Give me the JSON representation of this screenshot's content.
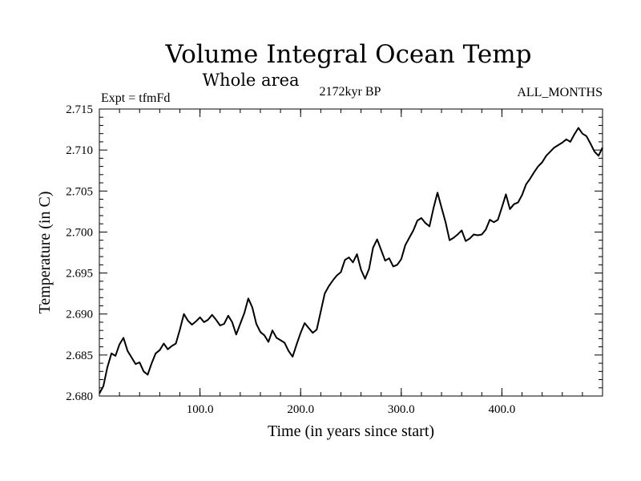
{
  "chart_data": {
    "type": "line",
    "title": "Volume Integral Ocean Temp",
    "subtitle": "Whole area",
    "experiment_label": "Expt = tfmFd",
    "period_label": "2172kyr BP",
    "months_label": "ALL_MONTHS",
    "xlabel": "Time (in years since start)",
    "ylabel": "Temperature (in C)",
    "xlim": [
      0,
      500
    ],
    "ylim": [
      2.68,
      2.715
    ],
    "xticks": [
      100,
      200,
      300,
      400
    ],
    "xtick_labels": [
      "100.0",
      "200.0",
      "300.0",
      "400.0"
    ],
    "yticks": [
      2.68,
      2.685,
      2.69,
      2.695,
      2.7,
      2.705,
      2.71,
      2.715
    ],
    "ytick_labels": [
      "2.680",
      "2.685",
      "2.690",
      "2.695",
      "2.700",
      "2.705",
      "2.710",
      "2.715"
    ],
    "grid": false,
    "series": [
      {
        "name": "Volume Integral Ocean Temp",
        "color": "#000000",
        "x": [
          0,
          4,
          8,
          12,
          16,
          20,
          24,
          28,
          32,
          36,
          40,
          44,
          48,
          52,
          56,
          60,
          64,
          68,
          72,
          76,
          80,
          84,
          88,
          92,
          96,
          100,
          104,
          108,
          112,
          116,
          120,
          124,
          128,
          132,
          136,
          140,
          144,
          148,
          152,
          156,
          160,
          164,
          168,
          172,
          176,
          180,
          184,
          188,
          192,
          196,
          200,
          204,
          208,
          212,
          216,
          220,
          224,
          228,
          232,
          236,
          240,
          244,
          248,
          252,
          256,
          260,
          264,
          268,
          272,
          276,
          280,
          284,
          288,
          292,
          296,
          300,
          304,
          308,
          312,
          316,
          320,
          324,
          328,
          332,
          336,
          340,
          344,
          348,
          352,
          356,
          360,
          364,
          368,
          372,
          376,
          380,
          384,
          388,
          392,
          396,
          400,
          404,
          408,
          412,
          416,
          420,
          424,
          428,
          432,
          436,
          440,
          444,
          448,
          452,
          456,
          460,
          464,
          468,
          472,
          476,
          480,
          484,
          488,
          492,
          496,
          500
        ],
        "y": [
          2.6803,
          2.6812,
          2.6835,
          2.6852,
          2.6849,
          2.6863,
          2.6871,
          2.6855,
          2.6847,
          2.6839,
          2.6841,
          2.683,
          2.6826,
          2.684,
          2.6852,
          2.6856,
          2.6864,
          2.6857,
          2.6861,
          2.6864,
          2.6881,
          2.69,
          2.6892,
          2.6887,
          2.6891,
          2.6896,
          2.689,
          2.6893,
          2.6899,
          2.6893,
          2.6886,
          2.6888,
          2.6898,
          2.689,
          2.6875,
          2.6888,
          2.6901,
          2.6919,
          2.6908,
          2.6888,
          2.6878,
          2.6874,
          2.6866,
          2.688,
          2.6871,
          2.6868,
          2.6865,
          2.6855,
          2.6848,
          2.6863,
          2.6877,
          2.6889,
          2.6883,
          2.6877,
          2.6881,
          2.6903,
          2.6925,
          2.6934,
          2.6941,
          2.6947,
          2.6951,
          2.6966,
          2.6969,
          2.6963,
          2.6973,
          2.6954,
          2.6943,
          2.6955,
          2.6981,
          2.6991,
          2.6978,
          2.6965,
          2.6968,
          2.6958,
          2.696,
          2.6967,
          2.6984,
          2.6993,
          2.7002,
          2.7014,
          2.7017,
          2.7011,
          2.7007,
          2.7029,
          2.7048,
          2.703,
          2.7012,
          2.699,
          2.6993,
          2.6997,
          2.7002,
          2.6989,
          2.6992,
          2.6997,
          2.6996,
          2.6997,
          2.7003,
          2.7015,
          2.7012,
          2.7015,
          2.703,
          2.7046,
          2.7028,
          2.7034,
          2.7036,
          2.7045,
          2.7058,
          2.7065,
          2.7073,
          2.708,
          2.7085,
          2.7093,
          2.7098,
          2.7103,
          2.7106,
          2.7109,
          2.7113,
          2.711,
          2.7119,
          2.7127,
          2.712,
          2.7117,
          2.7108,
          2.7098,
          2.7093,
          2.7103
        ]
      }
    ]
  }
}
